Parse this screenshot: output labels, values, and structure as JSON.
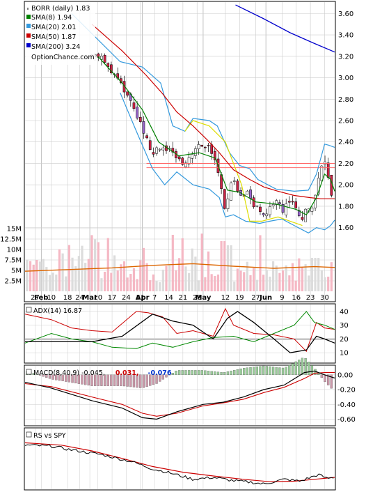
{
  "chart_data": {
    "type": "stock-chart",
    "symbol_label": "BORR (daily) 1.83",
    "watermark": "OptionChance.com",
    "legend": [
      {
        "name": "SMA(8) 1.94",
        "color": "#008000"
      },
      {
        "name": "SMA(20) 2.01",
        "color": "#3399dd"
      },
      {
        "name": "SMA(50) 1.87",
        "color": "#cc0000"
      },
      {
        "name": "SMA(200) 3.24",
        "color": "#0000cc"
      }
    ],
    "x_tick_labels": [
      {
        "label": "27",
        "day": 2,
        "bold": false
      },
      {
        "label": "Feb",
        "day": 5,
        "bold": true
      },
      {
        "label": "10",
        "day": 10,
        "bold": false
      },
      {
        "label": "18",
        "day": 18,
        "bold": false
      },
      {
        "label": "24",
        "day": 24,
        "bold": false
      },
      {
        "label": "Mar",
        "day": 29,
        "bold": true
      },
      {
        "label": "10",
        "day": 33,
        "bold": false
      },
      {
        "label": "17",
        "day": 40,
        "bold": false
      },
      {
        "label": "24",
        "day": 47,
        "bold": false
      },
      {
        "label": "31",
        "day": 54,
        "bold": false
      },
      {
        "label": "Apr",
        "day": 55,
        "bold": true
      },
      {
        "label": "7",
        "day": 61,
        "bold": false
      },
      {
        "label": "14",
        "day": 68,
        "bold": false
      },
      {
        "label": "21",
        "day": 75,
        "bold": false
      },
      {
        "label": "28",
        "day": 82,
        "bold": false
      },
      {
        "label": "May",
        "day": 85,
        "bold": true
      },
      {
        "label": "12",
        "day": 96,
        "bold": false
      },
      {
        "label": "19",
        "day": 103,
        "bold": false
      },
      {
        "label": "27",
        "day": 111,
        "bold": false
      },
      {
        "label": "Jun",
        "day": 116,
        "bold": true
      },
      {
        "label": "9",
        "day": 124,
        "bold": false
      },
      {
        "label": "16",
        "day": 131,
        "bold": false
      },
      {
        "label": "23",
        "day": 138,
        "bold": false
      },
      {
        "label": "30",
        "day": 145,
        "bold": false
      }
    ],
    "price_panel": {
      "y_ticks": [
        "3.60",
        "3.40",
        "3.20",
        "3.00",
        "2.80",
        "2.60",
        "2.40",
        "2.20",
        "2.00",
        "1.80",
        "1.60"
      ],
      "ylim": [
        1.5,
        3.7
      ],
      "xlim": [
        -3,
        147
      ],
      "close": [
        [
          33,
          3.21
        ],
        [
          36,
          3.15
        ],
        [
          40,
          3.05
        ],
        [
          43,
          2.98
        ],
        [
          46,
          2.88
        ],
        [
          50,
          2.75
        ],
        [
          53,
          2.62
        ],
        [
          57,
          2.45
        ],
        [
          60,
          2.28
        ],
        [
          63,
          2.36
        ],
        [
          67,
          2.34
        ],
        [
          70,
          2.28
        ],
        [
          73,
          2.22
        ],
        [
          77,
          2.2
        ],
        [
          80,
          2.32
        ],
        [
          84,
          2.38
        ],
        [
          87,
          2.35
        ],
        [
          90,
          2.3
        ],
        [
          92,
          2.18
        ],
        [
          94,
          1.96
        ],
        [
          95,
          1.75
        ],
        [
          97,
          1.82
        ],
        [
          99,
          2.05
        ],
        [
          102,
          1.96
        ],
        [
          104,
          1.88
        ],
        [
          106,
          1.95
        ],
        [
          108,
          1.86
        ],
        [
          111,
          1.8
        ],
        [
          113,
          1.78
        ],
        [
          116,
          1.72
        ],
        [
          119,
          1.82
        ],
        [
          121,
          1.86
        ],
        [
          123,
          1.8
        ],
        [
          125,
          1.76
        ],
        [
          127,
          1.88
        ],
        [
          129,
          1.82
        ],
        [
          131,
          1.76
        ],
        [
          133,
          1.7
        ],
        [
          135,
          1.68
        ],
        [
          136,
          1.8
        ],
        [
          137,
          1.76
        ],
        [
          139,
          1.82
        ],
        [
          141,
          1.96
        ],
        [
          143,
          2.14
        ],
        [
          145,
          2.22
        ],
        [
          146,
          2.17
        ],
        [
          147,
          2.03
        ],
        [
          148,
          1.9
        ],
        [
          149,
          1.84
        ],
        [
          150,
          1.83
        ]
      ],
      "sma8": [
        [
          33,
          3.2
        ],
        [
          45,
          2.95
        ],
        [
          55,
          2.7
        ],
        [
          63,
          2.4
        ],
        [
          73,
          2.27
        ],
        [
          83,
          2.3
        ],
        [
          91,
          2.25
        ],
        [
          97,
          1.95
        ],
        [
          103,
          1.93
        ],
        [
          111,
          1.84
        ],
        [
          121,
          1.82
        ],
        [
          131,
          1.77
        ],
        [
          136,
          1.72
        ],
        [
          141,
          1.88
        ],
        [
          145,
          2.1
        ],
        [
          148,
          2.05
        ],
        [
          150,
          1.94
        ]
      ],
      "sma20_mid": [
        [
          20,
          3.3
        ],
        [
          40,
          3.05
        ],
        [
          52,
          2.8
        ],
        [
          62,
          2.55
        ],
        [
          72,
          2.35
        ],
        [
          84,
          2.28
        ],
        [
          92,
          2.25
        ],
        [
          100,
          2.05
        ],
        [
          110,
          1.92
        ],
        [
          120,
          1.86
        ],
        [
          130,
          1.82
        ],
        [
          137,
          1.78
        ],
        [
          142,
          1.85
        ],
        [
          146,
          1.98
        ],
        [
          150,
          2.01
        ]
      ],
      "sma20_upper": [
        [
          20,
          3.6
        ],
        [
          44,
          3.15
        ],
        [
          55,
          3.1
        ],
        [
          64,
          2.95
        ],
        [
          70,
          2.55
        ],
        [
          76,
          2.5
        ],
        [
          80,
          2.62
        ],
        [
          88,
          2.6
        ],
        [
          92,
          2.55
        ],
        [
          98,
          2.3
        ],
        [
          103,
          2.18
        ],
        [
          108,
          2.15
        ],
        [
          112,
          2.05
        ],
        [
          121,
          1.96
        ],
        [
          130,
          1.94
        ],
        [
          137,
          1.95
        ],
        [
          141,
          2.1
        ],
        [
          145,
          2.38
        ],
        [
          147,
          2.37
        ],
        [
          150,
          2.35
        ]
      ],
      "sma20_lower": [
        [
          44,
          2.86
        ],
        [
          52,
          2.5
        ],
        [
          60,
          2.15
        ],
        [
          66,
          2.0
        ],
        [
          72,
          2.12
        ],
        [
          80,
          2.0
        ],
        [
          88,
          1.96
        ],
        [
          93,
          1.88
        ],
        [
          96,
          1.7
        ],
        [
          100,
          1.72
        ],
        [
          106,
          1.66
        ],
        [
          113,
          1.64
        ],
        [
          118,
          1.66
        ],
        [
          124,
          1.68
        ],
        [
          130,
          1.62
        ],
        [
          134,
          1.58
        ],
        [
          137,
          1.55
        ],
        [
          141,
          1.6
        ],
        [
          145,
          1.58
        ],
        [
          148,
          1.62
        ],
        [
          150,
          1.67
        ]
      ],
      "sma50": [
        [
          30,
          3.5
        ],
        [
          45,
          3.25
        ],
        [
          57,
          3.02
        ],
        [
          65,
          2.85
        ],
        [
          72,
          2.68
        ],
        [
          80,
          2.55
        ],
        [
          87,
          2.42
        ],
        [
          93,
          2.3
        ],
        [
          100,
          2.14
        ],
        [
          108,
          2.05
        ],
        [
          115,
          1.98
        ],
        [
          122,
          1.94
        ],
        [
          130,
          1.9
        ],
        [
          138,
          1.88
        ],
        [
          143,
          1.87
        ],
        [
          150,
          1.87
        ]
      ],
      "sma200": [
        [
          101,
          3.68
        ],
        [
          115,
          3.55
        ],
        [
          128,
          3.42
        ],
        [
          140,
          3.32
        ],
        [
          150,
          3.24
        ]
      ],
      "sma20_yellow": [
        [
          76,
          2.5
        ],
        [
          80,
          2.6
        ],
        [
          88,
          2.55
        ],
        [
          96,
          2.4
        ],
        [
          104,
          2.0
        ],
        [
          108,
          1.66
        ],
        [
          114,
          1.66
        ],
        [
          122,
          1.7
        ],
        [
          128,
          1.66
        ],
        [
          134,
          1.62
        ]
      ],
      "resistance_lines": [
        2.2,
        2.16
      ]
    },
    "volume": {
      "y_ticks": [
        "15M",
        "12.5M",
        "10M",
        "7.5M",
        "5M",
        "2.5M"
      ],
      "ylim": [
        0,
        17.5
      ],
      "avg": [
        [
          -3,
          4.8
        ],
        [
          40,
          5.6
        ],
        [
          60,
          6.2
        ],
        [
          80,
          6.6
        ],
        [
          100,
          6.0
        ],
        [
          120,
          5.5
        ],
        [
          140,
          5.9
        ],
        [
          150,
          5.7
        ]
      ]
    },
    "adx": {
      "label": "ADX(14) 16.87",
      "y_ticks": [
        "40",
        "30",
        "20",
        "10"
      ],
      "ylim": [
        3,
        45
      ],
      "adx": [
        [
          -3,
          18
        ],
        [
          15,
          18
        ],
        [
          30,
          18
        ],
        [
          45,
          22
        ],
        [
          60,
          38
        ],
        [
          70,
          33
        ],
        [
          80,
          30
        ],
        [
          90,
          20
        ],
        [
          97,
          35
        ],
        [
          102,
          40
        ],
        [
          110,
          32
        ],
        [
          120,
          20
        ],
        [
          128,
          10
        ],
        [
          136,
          12
        ],
        [
          141,
          22
        ],
        [
          145,
          20
        ],
        [
          150,
          17
        ]
      ],
      "plus_di": [
        [
          -3,
          38
        ],
        [
          10,
          34
        ],
        [
          20,
          28
        ],
        [
          30,
          26
        ],
        [
          40,
          25
        ],
        [
          52,
          40
        ],
        [
          58,
          39
        ],
        [
          65,
          36
        ],
        [
          72,
          24
        ],
        [
          80,
          26
        ],
        [
          90,
          22
        ],
        [
          96,
          42
        ],
        [
          100,
          30
        ],
        [
          110,
          24
        ],
        [
          120,
          23
        ],
        [
          130,
          20
        ],
        [
          136,
          11
        ],
        [
          141,
          32
        ],
        [
          145,
          28
        ],
        [
          150,
          27
        ]
      ],
      "minus_di": [
        [
          -3,
          17
        ],
        [
          10,
          24
        ],
        [
          20,
          20
        ],
        [
          30,
          18
        ],
        [
          40,
          14
        ],
        [
          52,
          13
        ],
        [
          60,
          17
        ],
        [
          70,
          14
        ],
        [
          80,
          18
        ],
        [
          90,
          21
        ],
        [
          100,
          22
        ],
        [
          110,
          18
        ],
        [
          120,
          24
        ],
        [
          130,
          30
        ],
        [
          136,
          40
        ],
        [
          140,
          32
        ],
        [
          145,
          30
        ],
        [
          150,
          27
        ]
      ]
    },
    "macd": {
      "label": "MACD(8,40,9) -0.045,",
      "signal_value": "0.031,",
      "hist_value": "-0.076",
      "y_ticks": [
        "0.00",
        "-0.20",
        "-0.40",
        "-0.60"
      ],
      "ylim": [
        -0.68,
        0.12
      ],
      "macd": [
        [
          -3,
          -0.1
        ],
        [
          10,
          -0.18
        ],
        [
          30,
          -0.35
        ],
        [
          45,
          -0.45
        ],
        [
          55,
          -0.58
        ],
        [
          62,
          -0.6
        ],
        [
          72,
          -0.5
        ],
        [
          85,
          -0.4
        ],
        [
          95,
          -0.37
        ],
        [
          105,
          -0.3
        ],
        [
          115,
          -0.2
        ],
        [
          125,
          -0.14
        ],
        [
          135,
          0.03
        ],
        [
          140,
          0.05
        ],
        [
          145,
          0.0
        ],
        [
          150,
          -0.045
        ]
      ],
      "signal": [
        [
          -3,
          -0.12
        ],
        [
          10,
          -0.16
        ],
        [
          30,
          -0.3
        ],
        [
          45,
          -0.4
        ],
        [
          55,
          -0.52
        ],
        [
          62,
          -0.56
        ],
        [
          72,
          -0.52
        ],
        [
          85,
          -0.42
        ],
        [
          95,
          -0.38
        ],
        [
          105,
          -0.33
        ],
        [
          115,
          -0.24
        ],
        [
          125,
          -0.17
        ],
        [
          135,
          -0.05
        ],
        [
          140,
          0.02
        ],
        [
          145,
          0.03
        ],
        [
          150,
          0.031
        ]
      ]
    },
    "rs": {
      "label": "RS vs SPY",
      "ylim": [
        0,
        1
      ],
      "rs": [
        [
          -3,
          0.9
        ],
        [
          10,
          0.88
        ],
        [
          20,
          0.8
        ],
        [
          35,
          0.7
        ],
        [
          50,
          0.55
        ],
        [
          60,
          0.4
        ],
        [
          70,
          0.3
        ],
        [
          80,
          0.18
        ],
        [
          90,
          0.22
        ],
        [
          100,
          0.15
        ],
        [
          108,
          0.12
        ],
        [
          115,
          0.08
        ],
        [
          125,
          0.18
        ],
        [
          133,
          0.14
        ],
        [
          138,
          0.22
        ],
        [
          142,
          0.28
        ],
        [
          146,
          0.2
        ],
        [
          150,
          0.22
        ]
      ],
      "rs_ma": [
        [
          -3,
          0.95
        ],
        [
          15,
          0.9
        ],
        [
          30,
          0.78
        ],
        [
          45,
          0.62
        ],
        [
          60,
          0.45
        ],
        [
          75,
          0.33
        ],
        [
          90,
          0.25
        ],
        [
          105,
          0.18
        ],
        [
          118,
          0.13
        ],
        [
          130,
          0.14
        ],
        [
          140,
          0.18
        ],
        [
          150,
          0.22
        ]
      ]
    },
    "colors": {
      "up": "#ffffff",
      "down": "#cc2244",
      "down_purple": "#9966cc",
      "vol_up": "#dcdcdc",
      "vol_down": "#f5b8c4",
      "vol_avg": "#dd6600",
      "adx": "#000000",
      "plus_di": "#008800",
      "minus_di": "#cc0000",
      "macd_line": "#000000",
      "signal_line": "#cc0000",
      "hist_pos": "#99cc99",
      "hist_neg": "#cc99aa",
      "grid": "#cccccc",
      "resistance": "#ff6666"
    }
  }
}
